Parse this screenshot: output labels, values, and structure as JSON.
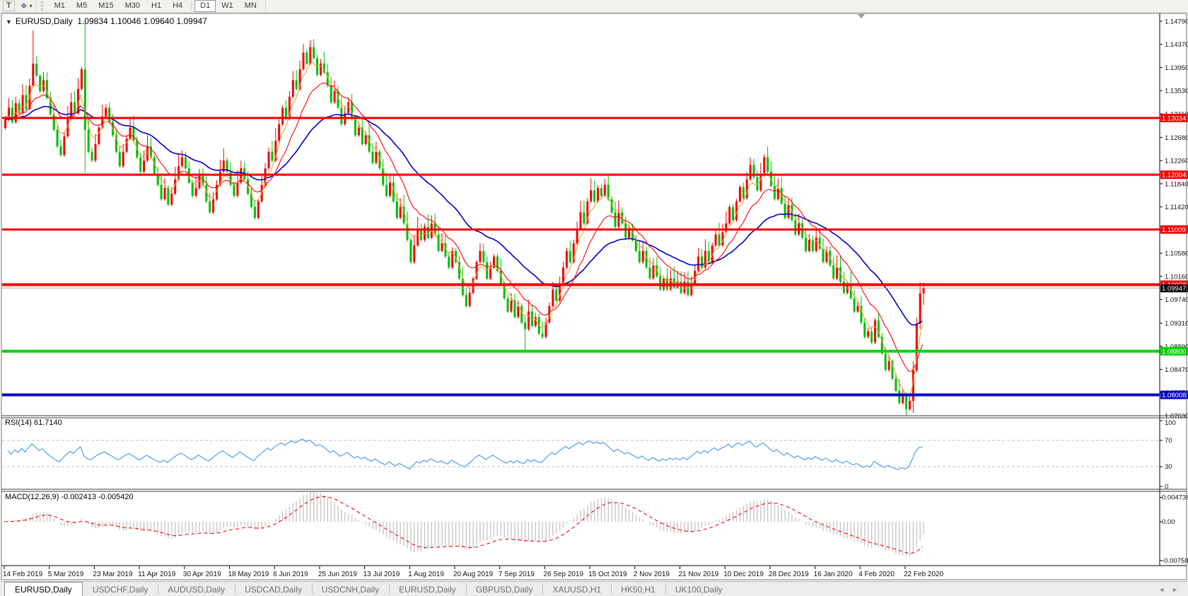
{
  "toolbar": {
    "text_tool": "T",
    "timeframes": [
      "M1",
      "M5",
      "M15",
      "M30",
      "H1",
      "H4",
      "D1",
      "W1",
      "MN"
    ],
    "active_timeframe": "D1"
  },
  "icons": {
    "text_tool_icon": "T",
    "arrange_icon": "❖",
    "dropdown_caret": "▾",
    "title_dropdown": "▼",
    "scroll_left": "◄",
    "scroll_right": "►"
  },
  "chart": {
    "title": {
      "symbol_period": "EURUSD,Daily",
      "open": "1.09834",
      "high": "1.10046",
      "low": "1.09640",
      "close": "1.09947"
    }
  },
  "rsi": {
    "label": "RSI(14) 61.7140",
    "period": 14,
    "value": 61.714,
    "levels": [
      100,
      70,
      30,
      0
    ]
  },
  "macd": {
    "label": "MACD(12,26,9) -0.002413 -0.005420",
    "params": [
      12,
      26,
      9
    ],
    "values": [
      -0.002413,
      -0.00542
    ],
    "axis_labels": [
      "0.004738",
      "0.00",
      "-0.00758"
    ]
  },
  "tabs": [
    "EURUSD,Daily",
    "USDCHF,Daily",
    "AUDUSD,Daily",
    "USDCAD,Daily",
    "USDCNH,Daily",
    "EURUSD,Daily",
    "GBPUSD,Daily",
    "XAUUSD,H1",
    "HK50,H1",
    "UK100,Daily"
  ],
  "active_tab_index": 0,
  "colors": {
    "bull": "#f40000",
    "bear": "#00be00",
    "ma_fast": "#e8a33d",
    "ma_medium": "#ff0000",
    "ma_slow": "#0000c8",
    "rsi_line": "#4d9fe8",
    "level_dash": "#c0c0c0",
    "macd_hist": "#c6c6c6",
    "macd_signal": "#ff0000",
    "current_line": "#ababab",
    "current_label_bg": "#000000",
    "axis_text": "#111111",
    "border": "#6f6f6f"
  },
  "chart_data": {
    "type": "candlestick",
    "symbol": "EURUSD",
    "timeframe": "Daily",
    "last_ohlc": {
      "open": 1.09834,
      "high": 1.10046,
      "low": 1.0964,
      "close": 1.09947
    },
    "ylim": [
      1.0763,
      1.1479
    ],
    "y_ticks": [
      "1.14790",
      "1.14370",
      "1.13950",
      "1.13530",
      "1.13110",
      "1.12680",
      "1.12260",
      "1.11840",
      "1.11420",
      "1.11000",
      "1.10580",
      "1.10160",
      "1.09740",
      "1.09310",
      "1.08890",
      "1.08470",
      "1.08050",
      "1.07630"
    ],
    "x_labels": [
      "14 Feb 2019",
      "5 Mar 2019",
      "23 Mar 2019",
      "11 Apr 2019",
      "30 Apr 2019",
      "18 May 2019",
      "6 Jun 2019",
      "25 Jun 2019",
      "13 Jul 2019",
      "1 Aug 2019",
      "20 Aug 2019",
      "7 Sep 2019",
      "26 Sep 2019",
      "15 Oct 2019",
      "2 Nov 2019",
      "21 Nov 2019",
      "10 Dec 2019",
      "28 Dec 2019",
      "16 Jan 2020",
      "4 Feb 2020",
      "22 Feb 2020"
    ],
    "bars_per_label": 13,
    "first_open": 1.1285,
    "closes": [
      1.13,
      1.1322,
      1.1296,
      1.133,
      1.1312,
      1.1345,
      1.132,
      1.1362,
      1.1402,
      1.138,
      1.1352,
      1.1372,
      1.134,
      1.131,
      1.1282,
      1.1252,
      1.1236,
      1.127,
      1.1302,
      1.1332,
      1.1312,
      1.1356,
      1.1392,
      1.1282,
      1.1242,
      1.1226,
      1.1256,
      1.1286,
      1.1306,
      1.1322,
      1.1296,
      1.1272,
      1.1242,
      1.1216,
      1.1242,
      1.1266,
      1.1286,
      1.1262,
      1.1232,
      1.1206,
      1.1226,
      1.1252,
      1.1232,
      1.1202,
      1.1182,
      1.1156,
      1.1176,
      1.1146,
      1.1166,
      1.1192,
      1.1216,
      1.1232,
      1.1212,
      1.1186,
      1.1162,
      1.1176,
      1.1202,
      1.1182,
      1.1152,
      1.1132,
      1.1156,
      1.1182,
      1.1206,
      1.1226,
      1.1206,
      1.1182,
      1.1162,
      1.1186,
      1.1212,
      1.1192,
      1.1166,
      1.1142,
      1.1122,
      1.1152,
      1.1182,
      1.1212,
      1.1242,
      1.1226,
      1.1262,
      1.1292,
      1.1322,
      1.1302,
      1.1342,
      1.1372,
      1.1356,
      1.1392,
      1.1422,
      1.1402,
      1.1432,
      1.1412,
      1.1382,
      1.1402,
      1.1386,
      1.1362,
      1.1332,
      1.1352,
      1.1322,
      1.1292,
      1.1312,
      1.1332,
      1.1302,
      1.1272,
      1.1286,
      1.1256,
      1.1272,
      1.1242,
      1.1222,
      1.1242,
      1.1212,
      1.1182,
      1.1162,
      1.1186,
      1.1152,
      1.1122,
      1.1142,
      1.1112,
      1.1082,
      1.1042,
      1.1072,
      1.1102,
      1.1082,
      1.1106,
      1.1086,
      1.1112,
      1.1092,
      1.1062,
      1.1076,
      1.1052,
      1.1032,
      1.1062,
      1.1042,
      1.1012,
      1.0982,
      1.0962,
      1.0986,
      1.1012,
      1.1042,
      1.1062,
      1.1042,
      1.1012,
      1.1032,
      1.1052,
      1.1026,
      1.1002,
      1.0976,
      1.0952,
      1.0972,
      1.0942,
      1.0962,
      1.0932,
      1.092,
      1.0952,
      1.0926,
      1.0942,
      1.0912,
      1.0906,
      1.0932,
      1.0962,
      1.0992,
      1.0972,
      1.1002,
      1.1032,
      1.1062,
      1.1042,
      1.1076,
      1.1102,
      1.1132,
      1.1112,
      1.1152,
      1.1172,
      1.1152,
      1.1176,
      1.1162,
      1.1182,
      1.1156,
      1.1132,
      1.1106,
      1.1132,
      1.1112,
      1.1086,
      1.1102,
      1.1082,
      1.1062,
      1.1042,
      1.1062,
      1.1032,
      1.1012,
      1.1036,
      1.1016,
      1.0992,
      1.1012,
      1.0992,
      1.1012,
      1.0996,
      1.1006,
      1.0986,
      1.1006,
      1.0982,
      1.1002,
      1.1026,
      1.1052,
      1.1032,
      1.1062,
      1.1042,
      1.1072,
      1.1092,
      1.1072,
      1.1096,
      1.1112,
      1.1142,
      1.1118,
      1.1152,
      1.1178,
      1.1158,
      1.1192,
      1.1218,
      1.1196,
      1.1172,
      1.12,
      1.1232,
      1.1206,
      1.118,
      1.1156,
      1.1176,
      1.1148,
      1.1122,
      1.1146,
      1.1118,
      1.1092,
      1.1112,
      1.1086,
      1.1062,
      1.1082,
      1.1062,
      1.1086,
      1.1066,
      1.1042,
      1.1062,
      1.1036,
      1.1012,
      1.1032,
      1.1006,
      1.0986,
      1.1002,
      1.0976,
      1.0952,
      1.0962,
      1.0932,
      1.0906,
      1.0916,
      1.0896,
      1.0936,
      1.0906,
      1.0876,
      1.0846,
      1.0862,
      1.083,
      1.0808,
      1.0786,
      1.0798,
      1.0775,
      1.079,
      1.0845,
      1.093,
      1.0985,
      1.09947
    ],
    "wick_overrides": {
      "8": {
        "h": 1.1462
      },
      "23": {
        "h": 1.1478,
        "l": 1.1205
      },
      "150": {
        "l": 1.0878
      },
      "260": {
        "l": 1.0763
      },
      "262": {
        "l": 1.0768
      },
      "264": {
        "h": 1.1005,
        "l": 1.092
      },
      "265": {
        "h": 1.10046,
        "l": 1.0964
      }
    },
    "indicators": {
      "ma_fast_period": 5,
      "ma_medium_period": 13,
      "ma_slow_period": 34,
      "rsi_period": 14,
      "macd_params": [
        12,
        26,
        9
      ]
    },
    "hlines": [
      {
        "price": 1.13034,
        "label": "1.13034",
        "color": "#f40000",
        "width": 3
      },
      {
        "price": 1.12004,
        "label": "1.12004",
        "color": "#f40000",
        "width": 3
      },
      {
        "price": 1.11009,
        "label": "1.11009",
        "color": "#f40000",
        "width": 3
      },
      {
        "price": 1.10008,
        "label": "1.10008",
        "color": "#f40000",
        "width": 4
      },
      {
        "price": 1.088,
        "label": "1.08800",
        "color": "#00d200",
        "width": 4
      },
      {
        "price": 1.08008,
        "label": "1.08008",
        "color": "#0000c8",
        "width": 4
      }
    ],
    "current_price": {
      "value": 1.09947,
      "label": "1.09947"
    }
  }
}
